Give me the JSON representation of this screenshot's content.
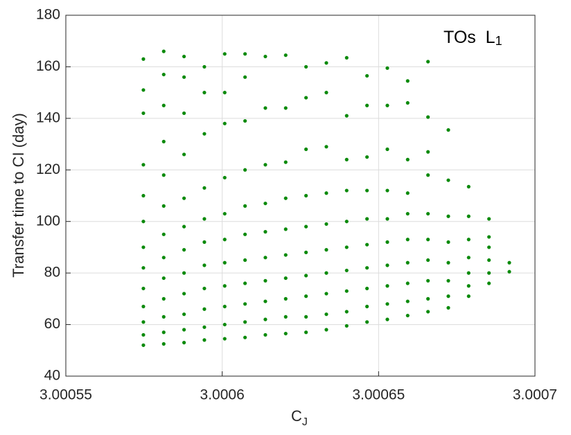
{
  "chart_data": {
    "type": "scatter",
    "annotation": "TOs  L",
    "annotation_sub": "1",
    "xlabel": "C",
    "xlabel_sub": "J",
    "ylabel": "Transfer time to CI (day)",
    "xlim": [
      3.00055,
      3.0007
    ],
    "xticks": [
      3.00055,
      3.0006,
      3.00065,
      3.0007
    ],
    "ylim": [
      40,
      180
    ],
    "yticks": [
      40,
      60,
      80,
      100,
      120,
      140,
      160,
      180
    ],
    "grid": true,
    "color": "#0b8a0b",
    "series": [
      {
        "x": [
          3.0005748,
          3.0005748,
          3.0005748,
          3.0005748,
          3.0005748,
          3.0005748,
          3.0005748,
          3.0005748,
          3.0005748,
          3.0005748,
          3.0005748,
          3.0005748,
          3.0005748
        ],
        "values": [
          52,
          56,
          61,
          67,
          74,
          82,
          90,
          100,
          110,
          122,
          142,
          151,
          163
        ]
      },
      {
        "x": [
          3.0005813,
          3.0005813,
          3.0005813,
          3.0005813,
          3.0005813,
          3.0005813,
          3.0005813,
          3.0005813,
          3.0005813,
          3.0005813,
          3.0005813,
          3.0005813,
          3.0005813
        ],
        "values": [
          52.5,
          57,
          63,
          70,
          78,
          86,
          95,
          106,
          118,
          131,
          145,
          157,
          166
        ]
      },
      {
        "x": [
          3.0005878,
          3.0005878,
          3.0005878,
          3.0005878,
          3.0005878,
          3.0005878,
          3.0005878,
          3.0005878,
          3.0005878,
          3.0005878,
          3.0005878,
          3.0005878
        ],
        "values": [
          53,
          58,
          64,
          72,
          80,
          89,
          98,
          109,
          126,
          142,
          156,
          164
        ]
      },
      {
        "x": [
          3.0005943,
          3.0005943,
          3.0005943,
          3.0005943,
          3.0005943,
          3.0005943,
          3.0005943,
          3.0005943,
          3.0005943,
          3.0005943,
          3.0005943
        ],
        "values": [
          54,
          59,
          66,
          74,
          83,
          92,
          101,
          113,
          134,
          150,
          160
        ]
      },
      {
        "x": [
          3.0006008,
          3.0006008,
          3.0006008,
          3.0006008,
          3.0006008,
          3.0006008,
          3.0006008,
          3.0006008,
          3.0006008,
          3.0006008,
          3.0006008
        ],
        "values": [
          54.5,
          60,
          67,
          75,
          84,
          93,
          103,
          117,
          138,
          150,
          165
        ]
      },
      {
        "x": [
          3.0006073,
          3.0006073,
          3.0006073,
          3.0006073,
          3.0006073,
          3.0006073,
          3.0006073,
          3.0006073,
          3.0006073,
          3.0006073,
          3.0006073
        ],
        "values": [
          55,
          61,
          68,
          76,
          85,
          95,
          106,
          120,
          139,
          156,
          165
        ]
      },
      {
        "x": [
          3.0006138,
          3.0006138,
          3.0006138,
          3.0006138,
          3.0006138,
          3.0006138,
          3.0006138,
          3.0006138,
          3.0006138,
          3.0006138
        ],
        "values": [
          56,
          62,
          69,
          77,
          86,
          96,
          107,
          122,
          144,
          164
        ]
      },
      {
        "x": [
          3.0006203,
          3.0006203,
          3.0006203,
          3.0006203,
          3.0006203,
          3.0006203,
          3.0006203,
          3.0006203,
          3.0006203,
          3.0006203
        ],
        "values": [
          56.5,
          63,
          70,
          78,
          87,
          97,
          109,
          123,
          144,
          164.5
        ]
      },
      {
        "x": [
          3.0006268,
          3.0006268,
          3.0006268,
          3.0006268,
          3.0006268,
          3.0006268,
          3.0006268,
          3.0006268,
          3.0006268,
          3.0006268
        ],
        "values": [
          57,
          63,
          71,
          79,
          88,
          98,
          110,
          128,
          148,
          160
        ]
      },
      {
        "x": [
          3.0006333,
          3.0006333,
          3.0006333,
          3.0006333,
          3.0006333,
          3.0006333,
          3.0006333,
          3.0006333,
          3.0006333,
          3.0006333
        ],
        "values": [
          58,
          64,
          72,
          80,
          89,
          99,
          111,
          129,
          150,
          161.5
        ]
      },
      {
        "x": [
          3.0006398,
          3.0006398,
          3.0006398,
          3.0006398,
          3.0006398,
          3.0006398,
          3.0006398,
          3.0006398,
          3.0006398,
          3.0006398
        ],
        "values": [
          59.5,
          65,
          73,
          81,
          90,
          100,
          112,
          124,
          141,
          163.5
        ]
      },
      {
        "x": [
          3.0006463,
          3.0006463,
          3.0006463,
          3.0006463,
          3.0006463,
          3.0006463,
          3.0006463,
          3.0006463,
          3.0006463,
          3.0006463
        ],
        "values": [
          61,
          67,
          74,
          82,
          91,
          101,
          112,
          125,
          145,
          156.5
        ]
      },
      {
        "x": [
          3.0006528,
          3.0006528,
          3.0006528,
          3.0006528,
          3.0006528,
          3.0006528,
          3.0006528,
          3.0006528,
          3.0006528,
          3.0006528
        ],
        "values": [
          62,
          68,
          75,
          83,
          92,
          101,
          112,
          128,
          145,
          159.5
        ]
      },
      {
        "x": [
          3.0006593,
          3.0006593,
          3.0006593,
          3.0006593,
          3.0006593,
          3.0006593,
          3.0006593,
          3.0006593,
          3.0006593,
          3.0006593
        ],
        "values": [
          63.5,
          69,
          76,
          84,
          93,
          103,
          111,
          124,
          146,
          154.5
        ]
      },
      {
        "x": [
          3.0006658,
          3.0006658,
          3.0006658,
          3.0006658,
          3.0006658,
          3.0006658,
          3.0006658,
          3.0006658,
          3.0006658,
          3.0006658
        ],
        "values": [
          65,
          70,
          77,
          85,
          93,
          103,
          118,
          127,
          140.5,
          162
        ]
      },
      {
        "x": [
          3.0006723,
          3.0006723,
          3.0006723,
          3.0006723,
          3.0006723,
          3.0006723,
          3.0006723,
          3.0006723
        ],
        "values": [
          66.5,
          71,
          77,
          84,
          92,
          102,
          116,
          135.5
        ]
      },
      {
        "x": [
          3.0006788,
          3.0006788,
          3.0006788,
          3.0006788,
          3.0006788,
          3.0006788,
          3.0006788
        ],
        "values": [
          71,
          75,
          80,
          86,
          93,
          102,
          113.5
        ]
      },
      {
        "x": [
          3.0006853,
          3.0006853,
          3.0006853,
          3.0006853,
          3.0006853,
          3.0006853
        ],
        "values": [
          76,
          80,
          85,
          90,
          94,
          101
        ]
      },
      {
        "x": [
          3.0006918,
          3.0006918
        ],
        "values": [
          80.5,
          84
        ]
      }
    ]
  }
}
